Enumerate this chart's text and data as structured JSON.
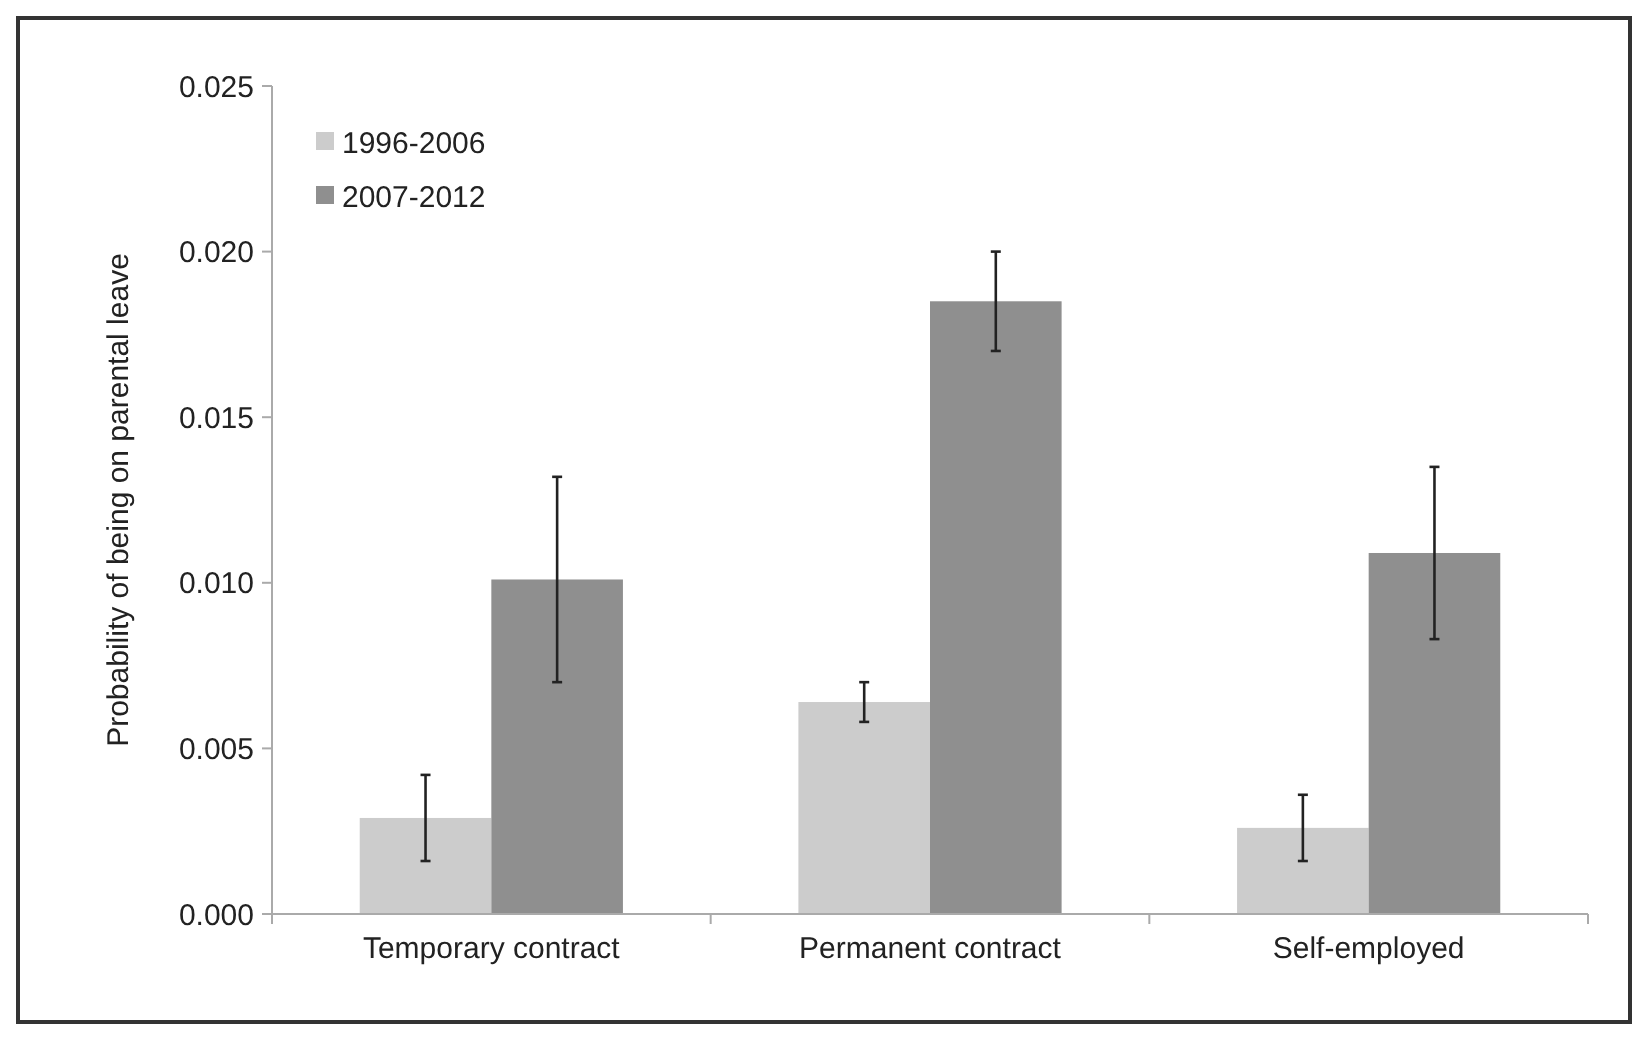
{
  "chart_data": {
    "type": "bar",
    "ylabel": "Probability of being on parental leave",
    "categories": [
      "Temporary contract",
      "Permanent contract",
      "Self-employed"
    ],
    "series": [
      {
        "name": "1996-2006",
        "color": "#cccccc",
        "values": [
          0.0029,
          0.0064,
          0.0026
        ],
        "errors": [
          0.0013,
          0.0006,
          0.001
        ]
      },
      {
        "name": "2007-2012",
        "color": "#8f8f8f",
        "values": [
          0.0101,
          0.0185,
          0.0109
        ],
        "errors": [
          0.0031,
          0.0015,
          0.0026
        ]
      }
    ],
    "ylim": [
      0,
      0.025
    ],
    "yticks": [
      {
        "value": 0,
        "label": "0.000"
      },
      {
        "value": 0.005,
        "label": "0.005"
      },
      {
        "value": 0.01,
        "label": "0.010"
      },
      {
        "value": 0.015,
        "label": "0.015"
      },
      {
        "value": 0.02,
        "label": "0.020"
      },
      {
        "value": 0.025,
        "label": "0.025"
      }
    ],
    "grid": false,
    "legend": "top left"
  }
}
